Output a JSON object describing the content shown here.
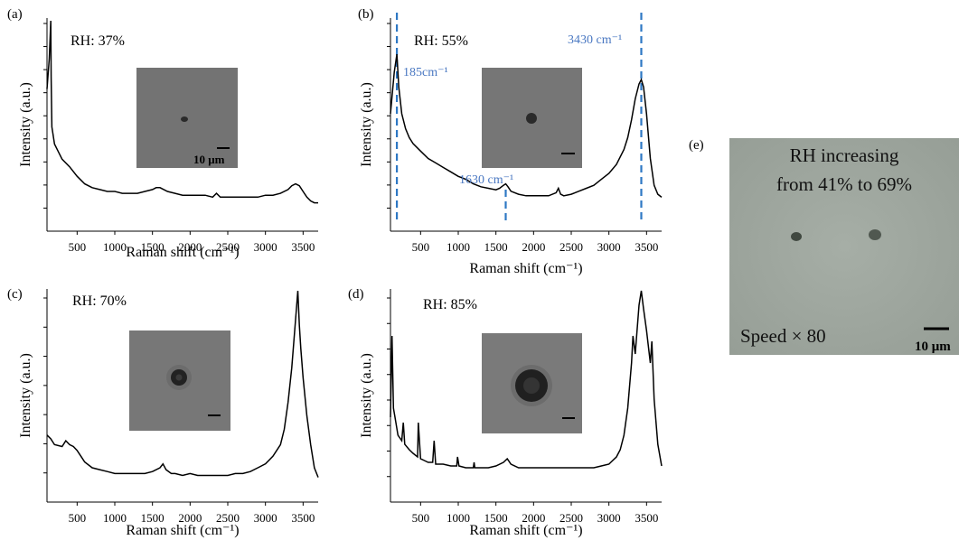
{
  "chart_data": [
    {
      "type": "line",
      "panel": "(a)",
      "annotation": "RH: 37%",
      "xlabel": "Raman shift (cm⁻¹)",
      "ylabel": "Intensity (a.u.)",
      "xlim": [
        100,
        3700
      ],
      "xticks": [
        500,
        1000,
        1500,
        2000,
        2500,
        3000,
        3500
      ],
      "inset_scale_label": "10 μm",
      "series": [
        {
          "x": [
            100,
            130,
            150,
            155,
            165,
            180,
            200,
            250,
            300,
            400,
            500,
            600,
            700,
            800,
            900,
            1000,
            1100,
            1200,
            1300,
            1400,
            1500,
            1550,
            1600,
            1650,
            1700,
            1800,
            1900,
            2000,
            2100,
            2200,
            2300,
            2350,
            2400,
            2500,
            2600,
            2700,
            2800,
            2900,
            3000,
            3100,
            3200,
            3300,
            3350,
            3400,
            3450,
            3500,
            3550,
            3600,
            3650,
            3700
          ],
          "y": [
            0.64,
            0.8,
            1.0,
            0.7,
            0.44,
            0.4,
            0.35,
            0.31,
            0.27,
            0.23,
            0.18,
            0.14,
            0.12,
            0.11,
            0.1,
            0.1,
            0.09,
            0.09,
            0.09,
            0.1,
            0.11,
            0.12,
            0.12,
            0.11,
            0.1,
            0.09,
            0.08,
            0.08,
            0.08,
            0.08,
            0.07,
            0.09,
            0.07,
            0.07,
            0.07,
            0.07,
            0.07,
            0.07,
            0.08,
            0.08,
            0.09,
            0.11,
            0.13,
            0.14,
            0.13,
            0.1,
            0.07,
            0.05,
            0.04,
            0.04
          ]
        }
      ]
    },
    {
      "type": "line",
      "panel": "(b)",
      "annotation": "RH: 55%",
      "xlabel": "Raman shift (cm⁻¹)",
      "ylabel": "Intensity (a.u.)",
      "xlim": [
        100,
        3700
      ],
      "xticks": [
        500,
        1000,
        1500,
        2000,
        2500,
        3000,
        3500
      ],
      "peak_labels": [
        {
          "text": "185cm⁻¹",
          "x": 185
        },
        {
          "text": "1630 cm⁻¹",
          "x": 1630
        },
        {
          "text": "3430 cm⁻¹",
          "x": 3430
        }
      ],
      "series": [
        {
          "x": [
            100,
            150,
            185,
            210,
            250,
            300,
            350,
            400,
            500,
            600,
            700,
            800,
            900,
            1000,
            1100,
            1200,
            1300,
            1400,
            1500,
            1550,
            1600,
            1630,
            1660,
            1700,
            1800,
            1900,
            2000,
            2100,
            2200,
            2300,
            2330,
            2360,
            2400,
            2500,
            2600,
            2700,
            2800,
            2900,
            3000,
            3100,
            3200,
            3250,
            3300,
            3350,
            3400,
            3430,
            3460,
            3500,
            3550,
            3600,
            3650,
            3700
          ],
          "y": [
            0.6,
            0.88,
            1.0,
            0.78,
            0.6,
            0.5,
            0.44,
            0.4,
            0.35,
            0.3,
            0.27,
            0.24,
            0.21,
            0.18,
            0.16,
            0.13,
            0.11,
            0.1,
            0.09,
            0.1,
            0.12,
            0.13,
            0.11,
            0.08,
            0.06,
            0.05,
            0.05,
            0.05,
            0.05,
            0.07,
            0.1,
            0.06,
            0.05,
            0.06,
            0.08,
            0.1,
            0.12,
            0.16,
            0.2,
            0.26,
            0.36,
            0.44,
            0.56,
            0.7,
            0.8,
            0.83,
            0.78,
            0.6,
            0.3,
            0.12,
            0.06,
            0.04
          ]
        }
      ]
    },
    {
      "type": "line",
      "panel": "(c)",
      "annotation": "RH: 70%",
      "xlabel": "Raman shift (cm⁻¹)",
      "ylabel": "Intensity (a.u.)",
      "xlim": [
        100,
        3700
      ],
      "xticks": [
        500,
        1000,
        1500,
        2000,
        2500,
        3000,
        3500
      ],
      "series": [
        {
          "x": [
            100,
            150,
            200,
            300,
            350,
            400,
            450,
            500,
            550,
            600,
            700,
            800,
            900,
            1000,
            1100,
            1200,
            1300,
            1400,
            1500,
            1600,
            1640,
            1680,
            1750,
            1800,
            1900,
            2000,
            2100,
            2200,
            2300,
            2400,
            2500,
            2600,
            2700,
            2800,
            2900,
            3000,
            3100,
            3200,
            3250,
            3300,
            3350,
            3400,
            3430,
            3450,
            3470,
            3500,
            3550,
            3600,
            3650,
            3700
          ],
          "y": [
            0.25,
            0.23,
            0.2,
            0.19,
            0.22,
            0.2,
            0.19,
            0.17,
            0.14,
            0.11,
            0.08,
            0.07,
            0.06,
            0.05,
            0.05,
            0.05,
            0.05,
            0.05,
            0.06,
            0.08,
            0.1,
            0.07,
            0.05,
            0.05,
            0.04,
            0.05,
            0.04,
            0.04,
            0.04,
            0.04,
            0.04,
            0.05,
            0.05,
            0.06,
            0.08,
            0.1,
            0.14,
            0.2,
            0.28,
            0.42,
            0.6,
            0.85,
            1.0,
            0.82,
            0.7,
            0.55,
            0.35,
            0.2,
            0.08,
            0.03
          ]
        }
      ]
    },
    {
      "type": "line",
      "panel": "(d)",
      "annotation": "RH: 85%",
      "xlabel": "Raman shift (cm⁻¹)",
      "ylabel": "Intensity (a.u.)",
      "xlim": [
        100,
        3700
      ],
      "xticks": [
        500,
        1000,
        1500,
        2000,
        2500,
        3000,
        3500
      ],
      "series": [
        {
          "x": [
            100,
            120,
            140,
            160,
            200,
            250,
            270,
            290,
            350,
            400,
            460,
            470,
            500,
            550,
            600,
            660,
            680,
            700,
            800,
            900,
            980,
            990,
            1010,
            1100,
            1200,
            1210,
            1220,
            1300,
            1400,
            1500,
            1600,
            1650,
            1700,
            1800,
            1900,
            2000,
            2100,
            2200,
            2300,
            2400,
            2500,
            2600,
            2700,
            2800,
            2900,
            3000,
            3100,
            3150,
            3200,
            3250,
            3300,
            3320,
            3350,
            3400,
            3430,
            3460,
            3500,
            3550,
            3570,
            3600,
            3650,
            3700
          ],
          "y": [
            0.3,
            0.75,
            0.35,
            0.3,
            0.2,
            0.17,
            0.27,
            0.15,
            0.12,
            0.1,
            0.08,
            0.27,
            0.07,
            0.06,
            0.05,
            0.05,
            0.17,
            0.04,
            0.04,
            0.03,
            0.03,
            0.08,
            0.03,
            0.02,
            0.02,
            0.05,
            0.02,
            0.02,
            0.02,
            0.03,
            0.05,
            0.07,
            0.04,
            0.02,
            0.02,
            0.02,
            0.02,
            0.02,
            0.02,
            0.02,
            0.02,
            0.02,
            0.02,
            0.02,
            0.03,
            0.04,
            0.08,
            0.12,
            0.2,
            0.35,
            0.6,
            0.75,
            0.65,
            0.92,
            1.0,
            0.9,
            0.78,
            0.6,
            0.72,
            0.4,
            0.15,
            0.03
          ]
        }
      ]
    }
  ],
  "panel_e": {
    "label": "(e)",
    "title_line1": "RH increasing",
    "title_line2": "from 41% to 69%",
    "speed_text": "Speed × 80",
    "scale_label": "10 μm"
  }
}
